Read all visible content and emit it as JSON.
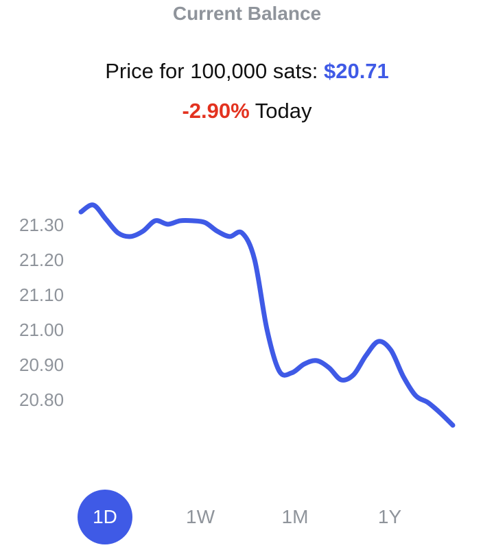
{
  "header": {
    "title": "Current Balance",
    "price_label": "Price for 100,000 sats: ",
    "price_value": "$20.71",
    "change_value": "-2.90%",
    "change_suffix": " Today"
  },
  "colors": {
    "accent": "#3f5ae6",
    "negative": "#e3321f",
    "muted": "#8f949b"
  },
  "range_tabs": [
    {
      "label": "1D",
      "active": true
    },
    {
      "label": "1W",
      "active": false
    },
    {
      "label": "1M",
      "active": false
    },
    {
      "label": "1Y",
      "active": false
    }
  ],
  "chart_data": {
    "type": "line",
    "title": "",
    "xlabel": "",
    "ylabel": "",
    "y_ticks": [
      "21.30",
      "21.20",
      "21.10",
      "21.00",
      "20.90",
      "20.80"
    ],
    "ylim": [
      20.73,
      21.36
    ],
    "grid": false,
    "series": [
      {
        "values": [
          21.335,
          21.355,
          21.315,
          21.275,
          21.265,
          21.28,
          21.31,
          21.3,
          21.31,
          21.31,
          21.305,
          21.28,
          21.265,
          21.275,
          21.2,
          21.0,
          20.88,
          20.875,
          20.9,
          20.91,
          20.89,
          20.855,
          20.87,
          20.925,
          20.965,
          20.94,
          20.865,
          20.81,
          20.79,
          20.76,
          20.725
        ]
      }
    ]
  }
}
